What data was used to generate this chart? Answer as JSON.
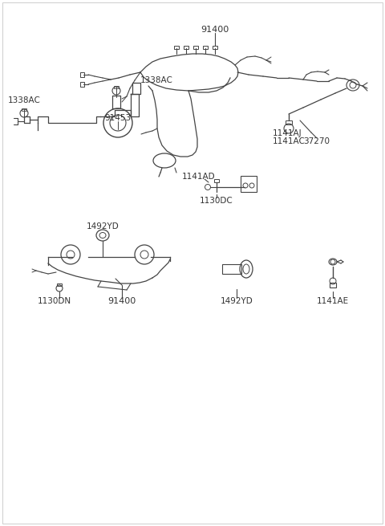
{
  "bg_color": "#ffffff",
  "line_color": "#444444",
  "text_color": "#333333",
  "labels": {
    "91400_top": "91400",
    "1130DN": "1130DN",
    "91400_mid": "91400",
    "1492YD_mid": "1492YD",
    "1492YD_bot": "1492YD",
    "1141AE": "1141AE",
    "91453": "91453",
    "1338AC_left": "1338AC",
    "1338AC_bot": "1338AC",
    "1130DC": "1130DC",
    "1141AD": "1141AD",
    "1141AC": "1141AC",
    "1141AJ": "1141AJ",
    "37270": "37270"
  },
  "font_size": 7.5
}
